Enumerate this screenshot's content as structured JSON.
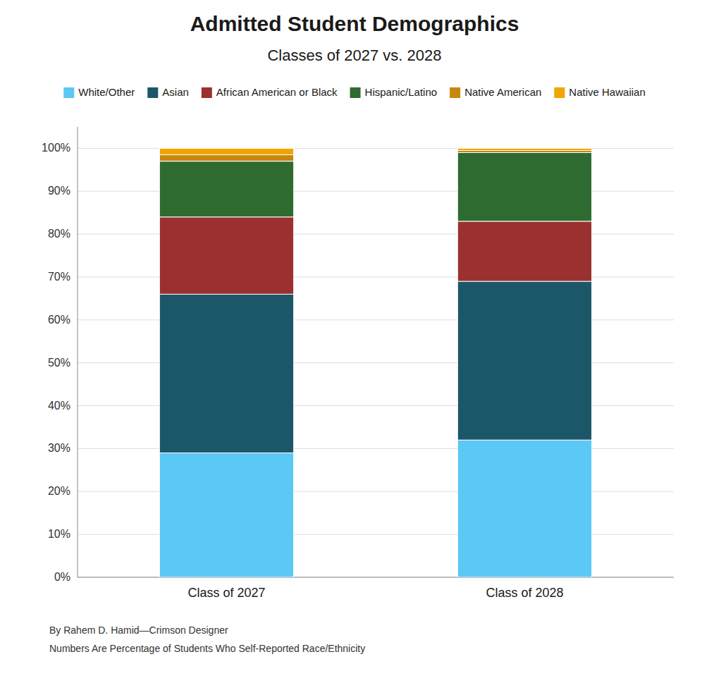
{
  "chart_data": {
    "type": "bar",
    "stacked": true,
    "title": "Admitted Student Demographics",
    "subtitle": "Classes of 2027 vs. 2028",
    "categories": [
      "Class of 2027",
      "Class of 2028"
    ],
    "series": [
      {
        "name": "White/Other",
        "color": "#5BC8F5",
        "values": [
          29.0,
          32.0
        ]
      },
      {
        "name": "Asian",
        "color": "#1C5769",
        "values": [
          37.0,
          37.0
        ]
      },
      {
        "name": "African American or Black",
        "color": "#9B3030",
        "values": [
          18.0,
          14.0
        ]
      },
      {
        "name": "Hispanic/Latino",
        "color": "#2E6B30",
        "values": [
          13.0,
          16.0
        ]
      },
      {
        "name": "Native American",
        "color": "#C8860A",
        "values": [
          1.5,
          0.5
        ]
      },
      {
        "name": "Native Hawaiian",
        "color": "#F0A500",
        "values": [
          1.5,
          0.5
        ]
      }
    ],
    "ylim": [
      0,
      105
    ],
    "yticks": [
      {
        "value": 0,
        "label": "0%"
      },
      {
        "value": 10,
        "label": "10%"
      },
      {
        "value": 20,
        "label": "20%"
      },
      {
        "value": 30,
        "label": "30%"
      },
      {
        "value": 40,
        "label": "40%"
      },
      {
        "value": 50,
        "label": "50%"
      },
      {
        "value": 60,
        "label": "60%"
      },
      {
        "value": 70,
        "label": "70%"
      },
      {
        "value": 80,
        "label": "80%"
      },
      {
        "value": 90,
        "label": "90%"
      },
      {
        "value": 100,
        "label": "100%"
      }
    ],
    "grid": true,
    "legend": "top",
    "annotations": [
      "By Rahem D. Hamid—Crimson Designer",
      "Numbers Are Percentage of Students Who Self-Reported Race/Ethnicity"
    ]
  }
}
